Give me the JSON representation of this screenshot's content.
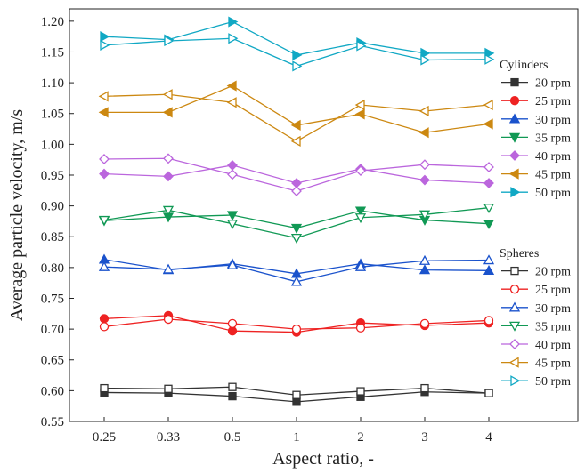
{
  "chart_data": {
    "type": "line",
    "xlabel": "Aspect ratio, -",
    "ylabel": "Average particle velocity, m/s",
    "categories": [
      "0.25",
      "0.33",
      "0.5",
      "1",
      "2",
      "3",
      "4"
    ],
    "ylim": [
      0.55,
      1.22
    ],
    "yticks": [
      "0.55",
      "0.60",
      "0.65",
      "0.70",
      "0.75",
      "0.80",
      "0.85",
      "0.90",
      "0.95",
      "1.00",
      "1.05",
      "1.10",
      "1.15",
      "1.20"
    ],
    "grid": false,
    "legend_position": "right",
    "legend_groups": [
      {
        "title": "Cylinders",
        "filled": true,
        "entries": [
          "20 rpm",
          "25 rpm",
          "30 rpm",
          "35 rpm",
          "40 rpm",
          "45 rpm",
          "50 rpm"
        ]
      },
      {
        "title": "Spheres",
        "filled": false,
        "entries": [
          "20 rpm",
          "25 rpm",
          "30 rpm",
          "35 rpm",
          "40 rpm",
          "45 rpm",
          "50 rpm"
        ]
      }
    ],
    "series": [
      {
        "name": "20 rpm",
        "group": "Cylinders",
        "marker": "square",
        "color": "#333333",
        "values": [
          0.597,
          0.596,
          0.591,
          0.582,
          0.59,
          0.598,
          0.596
        ]
      },
      {
        "name": "25 rpm",
        "group": "Cylinders",
        "marker": "circle",
        "color": "#ee2222",
        "values": [
          0.717,
          0.722,
          0.697,
          0.695,
          0.71,
          0.706,
          0.71
        ]
      },
      {
        "name": "30 rpm",
        "group": "Cylinders",
        "marker": "triangle-up",
        "color": "#1a52cc",
        "values": [
          0.813,
          0.796,
          0.806,
          0.79,
          0.806,
          0.796,
          0.795
        ]
      },
      {
        "name": "35 rpm",
        "group": "Cylinders",
        "marker": "triangle-down",
        "color": "#119955",
        "values": [
          0.876,
          0.882,
          0.885,
          0.864,
          0.892,
          0.877,
          0.871
        ]
      },
      {
        "name": "40 rpm",
        "group": "Cylinders",
        "marker": "diamond",
        "color": "#bb66dd",
        "values": [
          0.952,
          0.948,
          0.966,
          0.937,
          0.96,
          0.942,
          0.937
        ]
      },
      {
        "name": "45 rpm",
        "group": "Cylinders",
        "marker": "triangle-left",
        "color": "#cc8811",
        "values": [
          1.052,
          1.052,
          1.095,
          1.031,
          1.049,
          1.019,
          1.033
        ]
      },
      {
        "name": "50 rpm",
        "group": "Cylinders",
        "marker": "triangle-right",
        "color": "#11a8c4",
        "values": [
          1.175,
          1.17,
          1.199,
          1.145,
          1.165,
          1.148,
          1.148
        ]
      },
      {
        "name": "20 rpm",
        "group": "Spheres",
        "marker": "square",
        "color": "#333333",
        "values": [
          0.604,
          0.603,
          0.606,
          0.593,
          0.599,
          0.604,
          0.596
        ]
      },
      {
        "name": "25 rpm",
        "group": "Spheres",
        "marker": "circle",
        "color": "#ee2222",
        "values": [
          0.704,
          0.716,
          0.709,
          0.7,
          0.702,
          0.709,
          0.714
        ]
      },
      {
        "name": "30 rpm",
        "group": "Spheres",
        "marker": "triangle-up",
        "color": "#1a52cc",
        "values": [
          0.801,
          0.797,
          0.804,
          0.777,
          0.801,
          0.811,
          0.812
        ]
      },
      {
        "name": "35 rpm",
        "group": "Spheres",
        "marker": "triangle-down",
        "color": "#119955",
        "values": [
          0.877,
          0.893,
          0.871,
          0.848,
          0.881,
          0.886,
          0.897
        ]
      },
      {
        "name": "40 rpm",
        "group": "Spheres",
        "marker": "diamond",
        "color": "#bb66dd",
        "values": [
          0.976,
          0.977,
          0.951,
          0.924,
          0.957,
          0.967,
          0.963
        ]
      },
      {
        "name": "45 rpm",
        "group": "Spheres",
        "marker": "triangle-left",
        "color": "#cc8811",
        "values": [
          1.078,
          1.081,
          1.068,
          1.005,
          1.064,
          1.054,
          1.064
        ]
      },
      {
        "name": "50 rpm",
        "group": "Spheres",
        "marker": "triangle-right",
        "color": "#11a8c4",
        "values": [
          1.161,
          1.168,
          1.172,
          1.127,
          1.16,
          1.137,
          1.138
        ]
      }
    ]
  }
}
